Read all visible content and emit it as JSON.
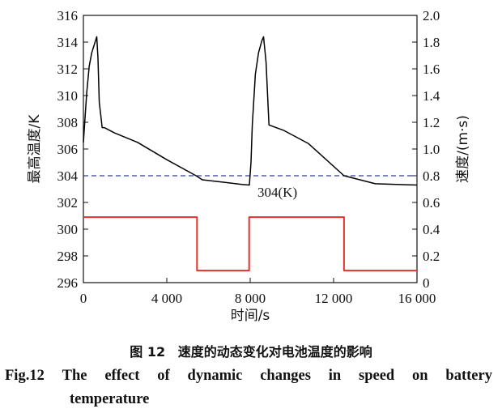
{
  "chart_data": {
    "type": "line",
    "xlabel": "时间/s",
    "ylabel_left": "最高温度/K",
    "ylabel_right": "速度/(m·s)",
    "xlim": [
      0,
      16000
    ],
    "ylim_left": [
      296,
      316
    ],
    "ylim_right": [
      0,
      2.0
    ],
    "x_ticks": [
      0,
      4000,
      8000,
      12000,
      16000
    ],
    "x_tick_labels": [
      "0",
      "4 000",
      "8 000",
      "12 000",
      "16 000"
    ],
    "y_left_ticks": [
      296,
      298,
      300,
      302,
      304,
      306,
      308,
      310,
      312,
      314,
      316
    ],
    "y_left_tick_labels": [
      "296",
      "298",
      "300",
      "302",
      "304",
      "306",
      "308",
      "310",
      "312",
      "314",
      "316"
    ],
    "y_right_ticks": [
      0,
      0.2,
      0.4,
      0.6,
      0.8,
      1.0,
      1.2,
      1.4,
      1.6,
      1.8,
      2.0
    ],
    "y_right_tick_labels": [
      "0",
      "0.2",
      "0.4",
      "0.6",
      "0.8",
      "1.0",
      "1.2",
      "1.4",
      "1.6",
      "1.8",
      "2.0"
    ],
    "series": [
      {
        "axis": "left",
        "color": "#000000",
        "x": [
          0,
          80,
          160,
          280,
          400,
          520,
          640,
          700,
          760,
          900,
          1000,
          1500,
          2600,
          4000,
          5400,
          5700,
          6800,
          7600,
          7960,
          8040,
          8100,
          8250,
          8400,
          8560,
          8640,
          8760,
          8900,
          9600,
          10800,
          12500,
          14000,
          16000
        ],
        "y": [
          306.5,
          308.4,
          310.2,
          312.2,
          313.2,
          313.8,
          314.4,
          312.8,
          309.5,
          307.6,
          307.6,
          307.2,
          306.5,
          305.2,
          304.0,
          303.7,
          303.5,
          303.35,
          303.3,
          305.0,
          307.8,
          311.6,
          313.2,
          314.1,
          314.4,
          312.5,
          307.8,
          307.4,
          306.4,
          304.0,
          303.4,
          303.3
        ]
      },
      {
        "axis": "right",
        "color": "#e5312b",
        "x": [
          0,
          5450,
          5450,
          7950,
          7950,
          12500,
          12500,
          16000
        ],
        "y": [
          0.49,
          0.49,
          0.09,
          0.09,
          0.49,
          0.49,
          0.09,
          0.09
        ]
      }
    ],
    "reference_line": {
      "axis": "left",
      "value": 304,
      "color": "#2f3f8f",
      "label": "304(K)"
    }
  },
  "caption": {
    "zh_number": "图 12",
    "zh_title": "速度的动态变化对电池温度的影响",
    "en_number": "Fig.12",
    "en_words": [
      "The",
      "effect",
      "of",
      "dynamic",
      "changes",
      "in",
      "speed",
      "on",
      "battery"
    ],
    "en_line2": "temperature"
  }
}
